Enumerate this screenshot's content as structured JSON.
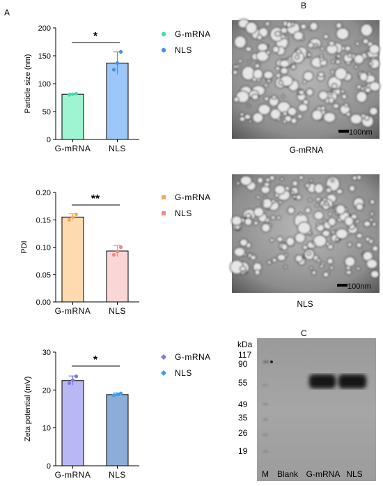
{
  "panels": {
    "a": "A",
    "b": "B",
    "c": "C"
  },
  "colors": {
    "size_gmrna": "#9ff5d2",
    "size_gmrna_dot": "#3ee0b0",
    "size_nls": "#9cc7f8",
    "size_nls_dot": "#4a8fe0",
    "pdi_gmrna": "#fddab0",
    "pdi_gmrna_dot": "#f5a95a",
    "pdi_nls": "#fbd6d6",
    "pdi_nls_dot": "#ee8a8a",
    "zeta_gmrna": "#b9b8f5",
    "zeta_gmrna_dot": "#7d7ae8",
    "zeta_nls": "#8dacd8",
    "zeta_nls_dot": "#3c9ee8"
  },
  "chart_data": [
    {
      "type": "bar",
      "categories": [
        "G-mRNA",
        "NLS"
      ],
      "values": [
        81,
        137
      ],
      "errors": [
        2,
        20
      ],
      "points": [
        [
          80,
          81,
          82
        ],
        [
          125,
          137,
          157
        ]
      ],
      "ylabel": "Particle size (nm)",
      "ylim": [
        0,
        200
      ],
      "yticks": [
        "0",
        "50",
        "100",
        "150",
        "200"
      ],
      "legend": [
        "G-mRNA",
        "NLS"
      ],
      "significance": "*"
    },
    {
      "type": "bar",
      "categories": [
        "G-mRNA",
        "NLS"
      ],
      "values": [
        0.155,
        0.093
      ],
      "errors": [
        0.006,
        0.01
      ],
      "points": [
        [
          0.15,
          0.155,
          0.16
        ],
        [
          0.086,
          0.092,
          0.1
        ]
      ],
      "ylabel": "PDI",
      "ylim": [
        0,
        0.2
      ],
      "yticks": [
        "0.00",
        "0.05",
        "0.10",
        "0.15",
        "0.20"
      ],
      "legend": [
        "G-mRNA",
        "NLS"
      ],
      "significance": "**"
    },
    {
      "type": "bar",
      "categories": [
        "G-mRNA",
        "NLS"
      ],
      "values": [
        22.5,
        18.8
      ],
      "errors": [
        1.2,
        0.4
      ],
      "points": [
        [
          21.8,
          22.6,
          23.6
        ],
        [
          18.6,
          18.9,
          19.1
        ]
      ],
      "ylabel": "Zeta potential (mV)",
      "ylim": [
        0,
        30
      ],
      "yticks": [
        "0",
        "10",
        "20",
        "30"
      ],
      "legend": [
        "G-mRNA",
        "NLS"
      ],
      "significance": "*"
    }
  ],
  "tem": {
    "top_caption": "G-mRNA",
    "bottom_caption": "NLS",
    "scale_bar": "100nm"
  },
  "blot": {
    "unit": "kDa",
    "markers": [
      "117",
      "90",
      "55",
      "49",
      "35",
      "26",
      "19"
    ],
    "lanes": [
      "M",
      "Blank",
      "G-mRNA",
      "NLS"
    ]
  }
}
